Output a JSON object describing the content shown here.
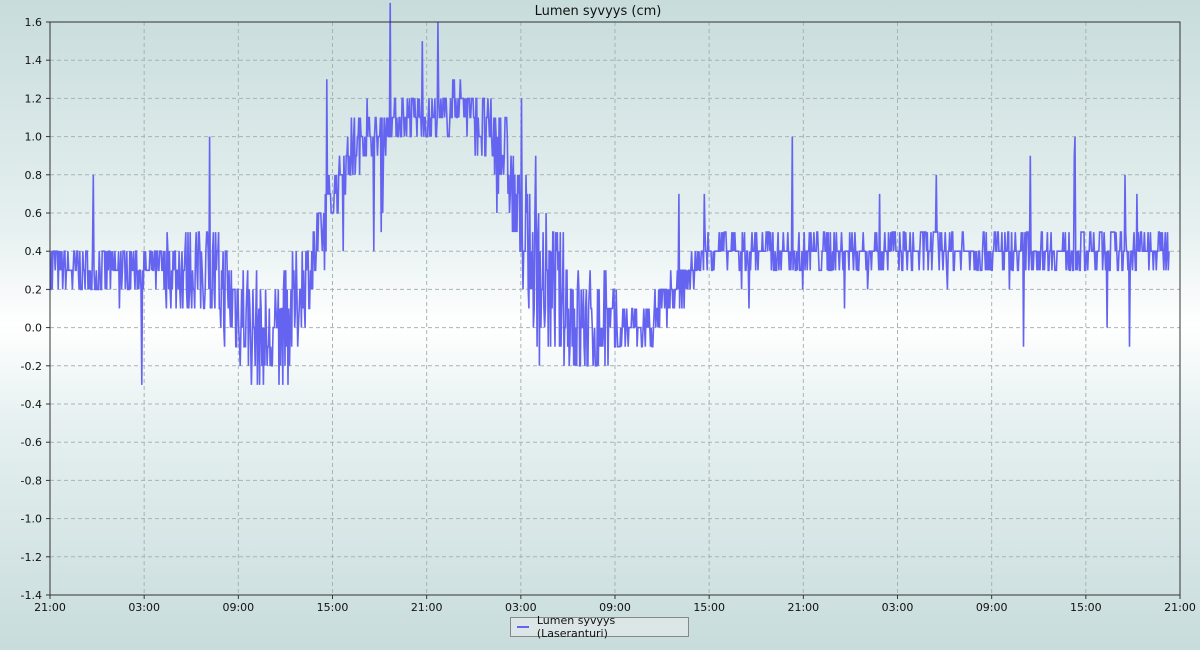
{
  "chart_data": {
    "type": "line",
    "title": "Lumen syvyys (cm)",
    "xlabel": "",
    "ylabel": "",
    "x_tick_labels": [
      "21:00",
      "03:00",
      "09:00",
      "15:00",
      "21:00",
      "03:00",
      "09:00",
      "15:00",
      "21:00",
      "03:00",
      "09:00",
      "15:00",
      "21:00"
    ],
    "ylim": [
      -1.4,
      1.6
    ],
    "y_ticks": [
      -1.4,
      -1.2,
      -1.0,
      -0.8,
      -0.6,
      -0.4,
      -0.2,
      0.0,
      0.2,
      0.4,
      0.6,
      0.8,
      1.0,
      1.2,
      1.4,
      1.6
    ],
    "grid": true,
    "legend_position": "bottom-center",
    "series": [
      {
        "name": "Lumen syvyys (Laseranturi)",
        "color": "#6464f0",
        "x_hours": [
          0,
          1,
          2,
          3,
          4,
          5,
          6,
          7,
          8,
          9,
          10,
          11,
          12,
          13,
          14,
          15,
          16,
          17,
          18,
          19,
          20,
          21,
          22,
          23,
          24,
          25,
          26,
          27,
          28,
          29,
          30,
          31,
          32,
          33,
          34,
          35,
          36,
          37,
          38,
          39,
          40,
          41,
          42,
          43,
          44,
          45,
          46,
          47,
          48,
          49,
          50,
          51,
          52,
          53,
          54,
          55,
          56,
          57,
          58,
          59,
          60,
          61,
          62,
          63,
          64,
          65,
          66,
          67,
          68,
          69,
          70,
          71,
          72
        ],
        "values": [
          0.3,
          0.3,
          0.3,
          0.3,
          0.3,
          0.3,
          0.3,
          0.3,
          0.3,
          0.3,
          0.3,
          0.2,
          0.1,
          0.0,
          -0.1,
          0.0,
          0.2,
          0.4,
          0.7,
          0.9,
          1.0,
          1.0,
          1.1,
          1.1,
          1.1,
          1.1,
          1.2,
          1.1,
          1.0,
          0.9,
          0.5,
          0.3,
          0.2,
          0.1,
          0.0,
          0.0,
          0.0,
          0.0,
          0.0,
          0.1,
          0.2,
          0.3,
          0.4,
          0.4,
          0.4,
          0.4,
          0.4,
          0.4,
          0.4,
          0.4,
          0.4,
          0.4,
          0.4,
          0.4,
          0.4,
          0.4,
          0.4,
          0.4,
          0.4,
          0.4,
          0.4,
          0.4,
          0.4,
          0.4,
          0.4,
          0.4,
          0.4,
          0.4,
          0.4,
          0.4,
          0.4,
          0.4,
          0.5
        ],
        "spread": [
          0.15,
          0.15,
          0.15,
          0.15,
          0.15,
          0.15,
          0.15,
          0.15,
          0.2,
          0.25,
          0.25,
          0.3,
          0.3,
          0.3,
          0.3,
          0.3,
          0.25,
          0.2,
          0.15,
          0.15,
          0.12,
          0.12,
          0.12,
          0.12,
          0.12,
          0.12,
          0.12,
          0.15,
          0.2,
          0.25,
          0.3,
          0.35,
          0.35,
          0.35,
          0.3,
          0.25,
          0.2,
          0.15,
          0.15,
          0.1,
          0.1,
          0.1,
          0.1,
          0.1,
          0.1,
          0.1,
          0.1,
          0.1,
          0.1,
          0.1,
          0.1,
          0.1,
          0.1,
          0.1,
          0.1,
          0.1,
          0.1,
          0.1,
          0.1,
          0.1,
          0.1,
          0.1,
          0.1,
          0.1,
          0.1,
          0.1,
          0.1,
          0.1,
          0.1,
          0.1,
          0.1,
          0.1,
          0.1
        ]
      }
    ]
  }
}
